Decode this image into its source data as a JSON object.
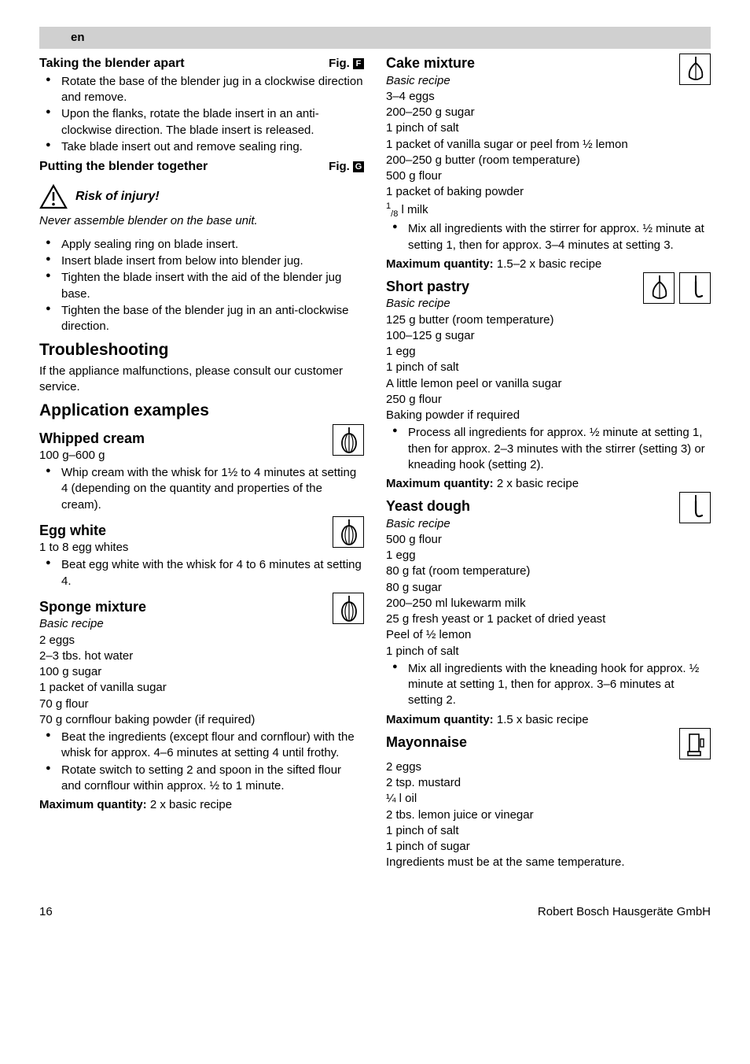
{
  "lang_label": "en",
  "page_number": "16",
  "footer_brand": "Robert Bosch Hausgeräte GmbH",
  "colors": {
    "lang_bar_bg": "#d0d0d0",
    "text": "#000000",
    "background": "#ffffff"
  },
  "left": {
    "taking_apart": {
      "title": "Taking the blender apart",
      "fig_label": "Fig.",
      "fig_glyph": "F",
      "bullets": [
        "Rotate the base of the blender jug in a clockwise direction and remove.",
        "Upon the flanks, rotate the blade insert in an anti-clockwise direction. The blade insert is released.",
        "Take blade insert out and remove sealing ring."
      ]
    },
    "putting_together": {
      "title": "Putting the blender together",
      "fig_label": "Fig.",
      "fig_glyph": "G"
    },
    "warning": {
      "label": "Risk of injury!",
      "note": "Never assemble blender on the base unit."
    },
    "assembly_bullets": [
      "Apply sealing ring on blade insert.",
      "Insert blade insert from below into blender jug.",
      "Tighten the blade insert with the aid of the blender jug base.",
      "Tighten the base of the blender jug in an anti-clockwise direction."
    ],
    "troubleshooting": {
      "title": "Troubleshooting",
      "text": "If the appliance malfunctions, please consult our customer service."
    },
    "app_examples_title": "Application examples",
    "whipped_cream": {
      "title": "Whipped cream",
      "qty": "100 g–600 g",
      "bullets": [
        "Whip cream with the whisk for 1½ to 4 minutes at setting 4 (depending on the quantity and properties of the cream)."
      ],
      "icon": "whisk"
    },
    "egg_white": {
      "title": "Egg white",
      "qty": "1 to 8 egg whites",
      "bullets": [
        "Beat egg white with the whisk for 4 to 6 minutes at setting 4."
      ],
      "icon": "whisk"
    },
    "sponge": {
      "title": "Sponge mixture",
      "subtitle": "Basic recipe",
      "lines": [
        "2 eggs",
        "2–3 tbs. hot water",
        "100 g sugar",
        "1 packet of vanilla sugar",
        "70 g flour",
        "70 g cornflour baking powder (if required)"
      ],
      "bullets": [
        "Beat the ingredients (except flour and cornflour) with the whisk for approx. 4–6 minutes at setting 4 until frothy.",
        "Rotate switch to setting 2 and spoon in the sifted flour and cornflour within approx. ½ to 1 minute."
      ],
      "max_label": "Maximum quantity:",
      "max_value": " 2 x basic recipe",
      "icon": "whisk"
    }
  },
  "right": {
    "cake": {
      "title": "Cake mixture",
      "subtitle": "Basic recipe",
      "lines": [
        "3–4 eggs",
        "200–250 g sugar",
        "1 pinch of salt",
        "1 packet of vanilla sugar or peel from ½ lemon",
        "200–250 g butter (room temperature)",
        "500 g flour",
        "1 packet of baking powder"
      ],
      "milk_prefix": "1",
      "milk_frac_num": "/",
      "milk_frac_den": "8",
      "milk_suffix": " l milk",
      "bullets": [
        "Mix all ingredients with the stirrer for approx. ½ minute at setting 1, then for approx. 3–4 minutes at setting 3."
      ],
      "max_label": "Maximum quantity:",
      "max_value": " 1.5–2 x basic recipe",
      "icon": "stirrer"
    },
    "short_pastry": {
      "title": "Short pastry",
      "subtitle": "Basic recipe",
      "lines": [
        "125 g butter (room temperature)",
        "100–125 g sugar",
        "1 egg",
        "1 pinch of salt",
        "A little lemon peel or vanilla sugar",
        "250 g flour",
        "Baking powder if required"
      ],
      "bullets": [
        "Process all ingredients for approx. ½ minute at setting 1, then for approx. 2–3 minutes with the stirrer (setting 3) or kneading hook (setting 2)."
      ],
      "max_label": "Maximum quantity:",
      "max_value": " 2 x basic recipe",
      "icons": [
        "stirrer",
        "hook"
      ]
    },
    "yeast": {
      "title": "Yeast dough",
      "subtitle": "Basic recipe",
      "lines": [
        "500 g flour",
        "1 egg",
        "80 g fat (room temperature)",
        "80 g sugar",
        "200–250 ml lukewarm milk",
        "25 g fresh yeast or 1 packet of dried yeast",
        "Peel of ½ lemon",
        "1 pinch of salt"
      ],
      "bullets": [
        "Mix all ingredients with the kneading hook for approx. ½ minute at setting 1, then for approx. 3–6 minutes at setting 2."
      ],
      "max_label": "Maximum quantity:",
      "max_value": " 1.5 x basic recipe",
      "icon": "hook"
    },
    "mayo": {
      "title": "Mayonnaise",
      "lines": [
        "2 eggs",
        "2 tsp. mustard",
        "¼ l oil",
        "2 tbs. lemon juice or vinegar",
        "1 pinch of salt",
        "1 pinch of sugar",
        "Ingredients must be at the same temperature."
      ],
      "icon": "blender"
    }
  }
}
